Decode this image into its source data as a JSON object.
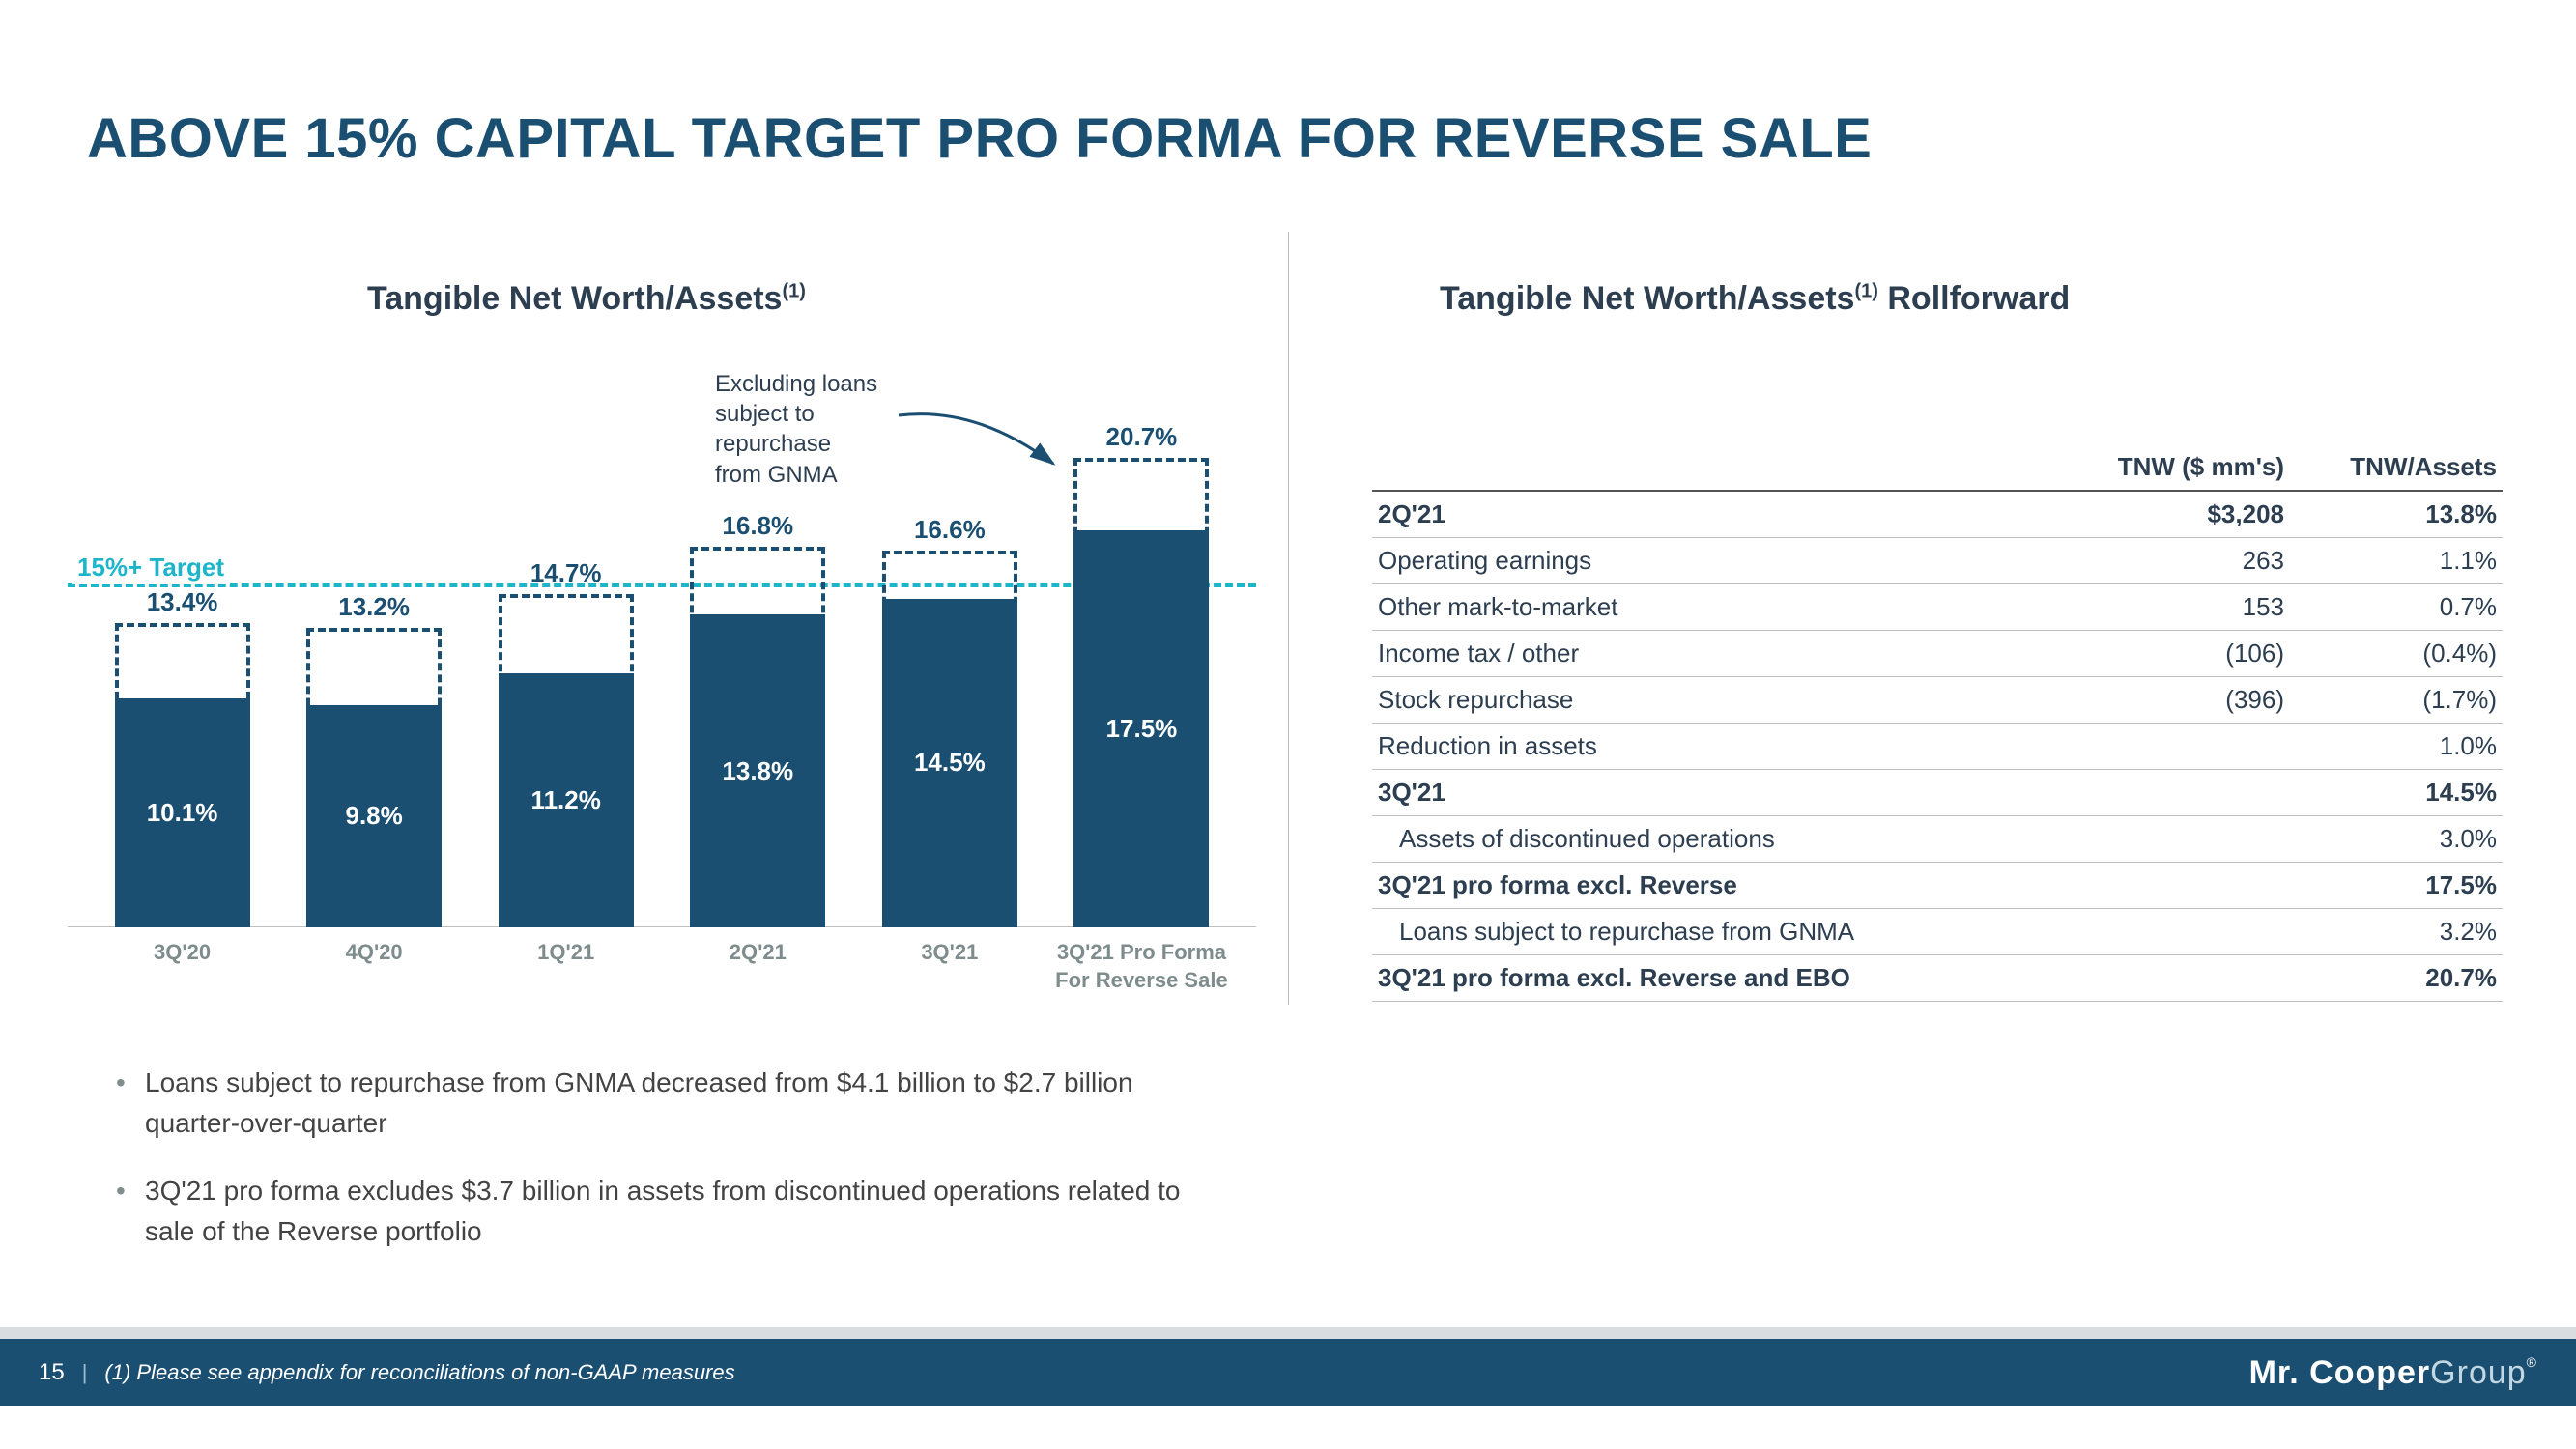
{
  "title": "ABOVE 15% CAPITAL TARGET PRO FORMA FOR REVERSE SALE",
  "chart": {
    "title_pre": "Tangible Net Worth/Assets",
    "title_sup": "(1)",
    "target_label": "15%+ Target",
    "target_value": 15.0,
    "annotation_text": "Excluding loans\nsubject to\nrepurchase\nfrom GNMA",
    "ymax": 23.0,
    "bar_color": "#1b4f72",
    "dashed_color": "#1b4f72",
    "target_color": "#1cb5c9",
    "categories": [
      {
        "label": "3Q'20",
        "solid": 10.1,
        "dashed": 13.4,
        "solid_text": "10.1%",
        "dashed_text": "13.4%"
      },
      {
        "label": "4Q'20",
        "solid": 9.8,
        "dashed": 13.2,
        "solid_text": "9.8%",
        "dashed_text": "13.2%"
      },
      {
        "label": "1Q'21",
        "solid": 11.2,
        "dashed": 14.7,
        "solid_text": "11.2%",
        "dashed_text": "14.7%"
      },
      {
        "label": "2Q'21",
        "solid": 13.8,
        "dashed": 16.8,
        "solid_text": "13.8%",
        "dashed_text": "16.8%"
      },
      {
        "label": "3Q'21",
        "solid": 14.5,
        "dashed": 16.6,
        "solid_text": "14.5%",
        "dashed_text": "16.6%"
      },
      {
        "label": "3Q'21 Pro Forma For Reverse Sale",
        "solid": 17.5,
        "dashed": 20.7,
        "solid_text": "17.5%",
        "dashed_text": "20.7%"
      }
    ]
  },
  "bullets": [
    "Loans subject to repurchase from GNMA decreased from $4.1 billion to $2.7 billion quarter-over-quarter",
    "3Q'21 pro forma excludes $3.7 billion in assets from discontinued operations related to sale of the Reverse portfolio"
  ],
  "table": {
    "title_pre": "Tangible Net Worth/Assets",
    "title_sup": "(1)",
    "title_post": " Rollforward",
    "header": {
      "c1": "",
      "c2": "TNW ($ mm's)",
      "c3": "TNW/Assets"
    },
    "rows": [
      {
        "c1": "2Q'21",
        "c2": "$3,208",
        "c3": "13.8%",
        "bold": true
      },
      {
        "c1": "Operating earnings",
        "c2": "263",
        "c3": "1.1%"
      },
      {
        "c1": "Other mark-to-market",
        "c2": "153",
        "c3": "0.7%"
      },
      {
        "c1": "Income tax / other",
        "c2": "(106)",
        "c3": "(0.4%)"
      },
      {
        "c1": "Stock repurchase",
        "c2": "(396)",
        "c3": "(1.7%)"
      },
      {
        "c1": "Reduction in assets",
        "c2": "",
        "c3": "1.0%"
      },
      {
        "c1": "3Q'21",
        "c2": "",
        "c3": "14.5%",
        "bold": true
      },
      {
        "c1": "Assets of discontinued operations",
        "c2": "",
        "c3": "3.0%",
        "indent": true
      },
      {
        "c1": "3Q'21 pro forma excl. Reverse",
        "c2": "",
        "c3": "17.5%",
        "bold": true
      },
      {
        "c1": "Loans subject to repurchase from GNMA",
        "c2": "",
        "c3": "3.2%",
        "indent": true
      },
      {
        "c1": "3Q'21 pro forma excl. Reverse and EBO",
        "c2": "",
        "c3": "20.7%",
        "bold": true
      }
    ]
  },
  "footer": {
    "page_num": "15",
    "note": "(1) Please see appendix for reconciliations of non-GAAP measures",
    "brand_bold": "Mr. Cooper",
    "brand_light": "Group"
  }
}
